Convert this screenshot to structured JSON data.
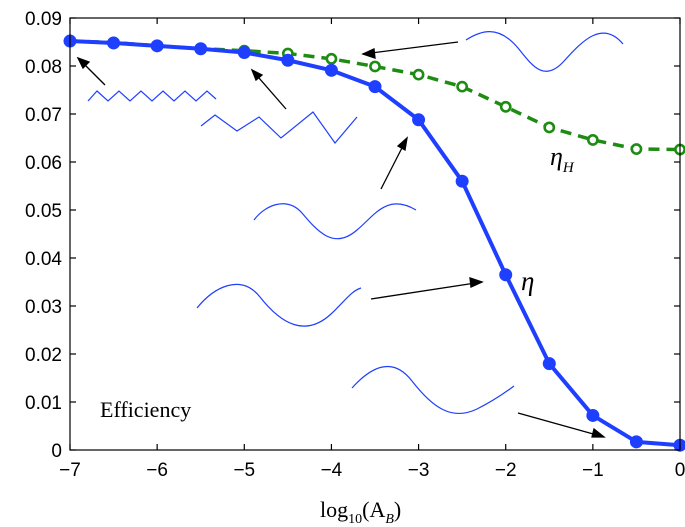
{
  "chart_data": {
    "type": "line",
    "title": "",
    "xlabel_main": "log",
    "xlabel_sub": "10",
    "xlabel_arg": "(A",
    "xlabel_arg_sub": "B",
    "xlabel_close": ")",
    "annotation": "Efficiency",
    "xlim": [
      -7,
      0
    ],
    "ylim": [
      0,
      0.09
    ],
    "xticks": [
      -7,
      -6,
      -5,
      -4,
      -3,
      -2,
      -1,
      0
    ],
    "yticks": [
      0,
      0.01,
      0.02,
      0.03,
      0.04,
      0.05,
      0.06,
      0.07,
      0.08,
      0.09
    ],
    "xtick_labels": [
      "−7",
      "−6",
      "−5",
      "−4",
      "−3",
      "−2",
      "−1",
      "0"
    ],
    "ytick_labels": [
      "0",
      "0.01",
      "0.02",
      "0.03",
      "0.04",
      "0.05",
      "0.06",
      "0.07",
      "0.08",
      "0.09"
    ],
    "grid": false,
    "series": [
      {
        "label_main": "η",
        "label_sub": "",
        "color": "#1f3fff",
        "style": "solid",
        "marker": "filled-circle",
        "x": [
          -7,
          -6.5,
          -6,
          -5.5,
          -5,
          -4.5,
          -4,
          -3.5,
          -3,
          -2.5,
          -2,
          -1.5,
          -1,
          -0.5,
          0
        ],
        "y": [
          0.0852,
          0.0848,
          0.0842,
          0.0836,
          0.0828,
          0.0812,
          0.0791,
          0.0757,
          0.0688,
          0.056,
          0.0365,
          0.018,
          0.0072,
          0.0017,
          0.001
        ]
      },
      {
        "label_main": "η",
        "label_sub": "H",
        "color": "#1e8c12",
        "style": "dashed",
        "marker": "open-circle",
        "x": [
          -7,
          -6.5,
          -6,
          -5.5,
          -5,
          -4.5,
          -4,
          -3.5,
          -3,
          -2.5,
          -2,
          -1.5,
          -1,
          -0.5,
          0
        ],
        "y": [
          0.0852,
          0.0849,
          0.0842,
          0.0836,
          0.0832,
          0.0826,
          0.0815,
          0.0799,
          0.0782,
          0.0757,
          0.0715,
          0.0672,
          0.0646,
          0.0627,
          0.0626
        ]
      }
    ]
  }
}
